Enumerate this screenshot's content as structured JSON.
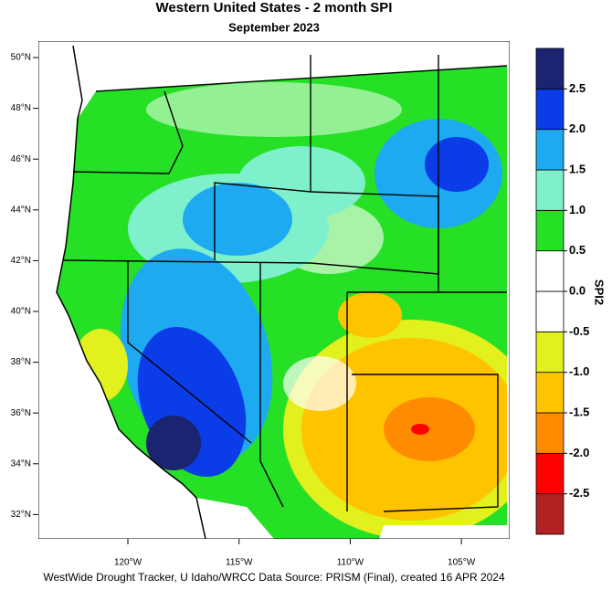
{
  "title": "Western United States - 2 month SPI",
  "subtitle": "September 2023",
  "lat_labels": [
    "50°N",
    "48°N",
    "46°N",
    "44°N",
    "42°N",
    "40°N",
    "38°N",
    "36°N",
    "34°N",
    "32°N"
  ],
  "lon_labels": [
    "120°W",
    "115°W",
    "110°W",
    "105°W"
  ],
  "colorbar": {
    "title": "SPI2",
    "clim": [
      -3,
      3
    ],
    "colors": [
      "#b22222",
      "#ff0000",
      "#ff8c00",
      "#ffc400",
      "#e2f01e",
      "#ffffff",
      "#ffffff",
      "#26e026",
      "#7ff0cc",
      "#1eaaf0",
      "#0a3ce8",
      "#1a2470"
    ],
    "ticks": [
      {
        "value": 2.5,
        "label": "2.5"
      },
      {
        "value": 2,
        "label": "2.0"
      },
      {
        "value": 1.5,
        "label": "1.5"
      },
      {
        "value": 1,
        "label": "1.0"
      },
      {
        "value": 0.5,
        "label": "0.5"
      },
      {
        "value": 0,
        "label": "0.0"
      },
      {
        "value": -0.5,
        "label": "-0.5"
      },
      {
        "value": -1,
        "label": "-1.0"
      },
      {
        "value": -1.5,
        "label": "-1.5"
      },
      {
        "value": -2,
        "label": "-2.0"
      },
      {
        "value": -2.5,
        "label": "-2.5"
      }
    ]
  },
  "footer": "WestWide Drought Tracker, U Idaho/WRCC Data Source: PRISM (Final), created 16 APR 2024"
}
